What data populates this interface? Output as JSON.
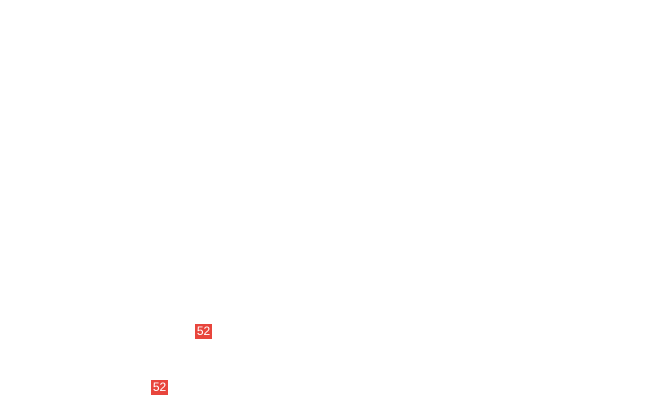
{
  "badges": [
    {
      "label": "52",
      "color": "#e8453c"
    },
    {
      "label": "52",
      "color": "#e8453c"
    }
  ]
}
